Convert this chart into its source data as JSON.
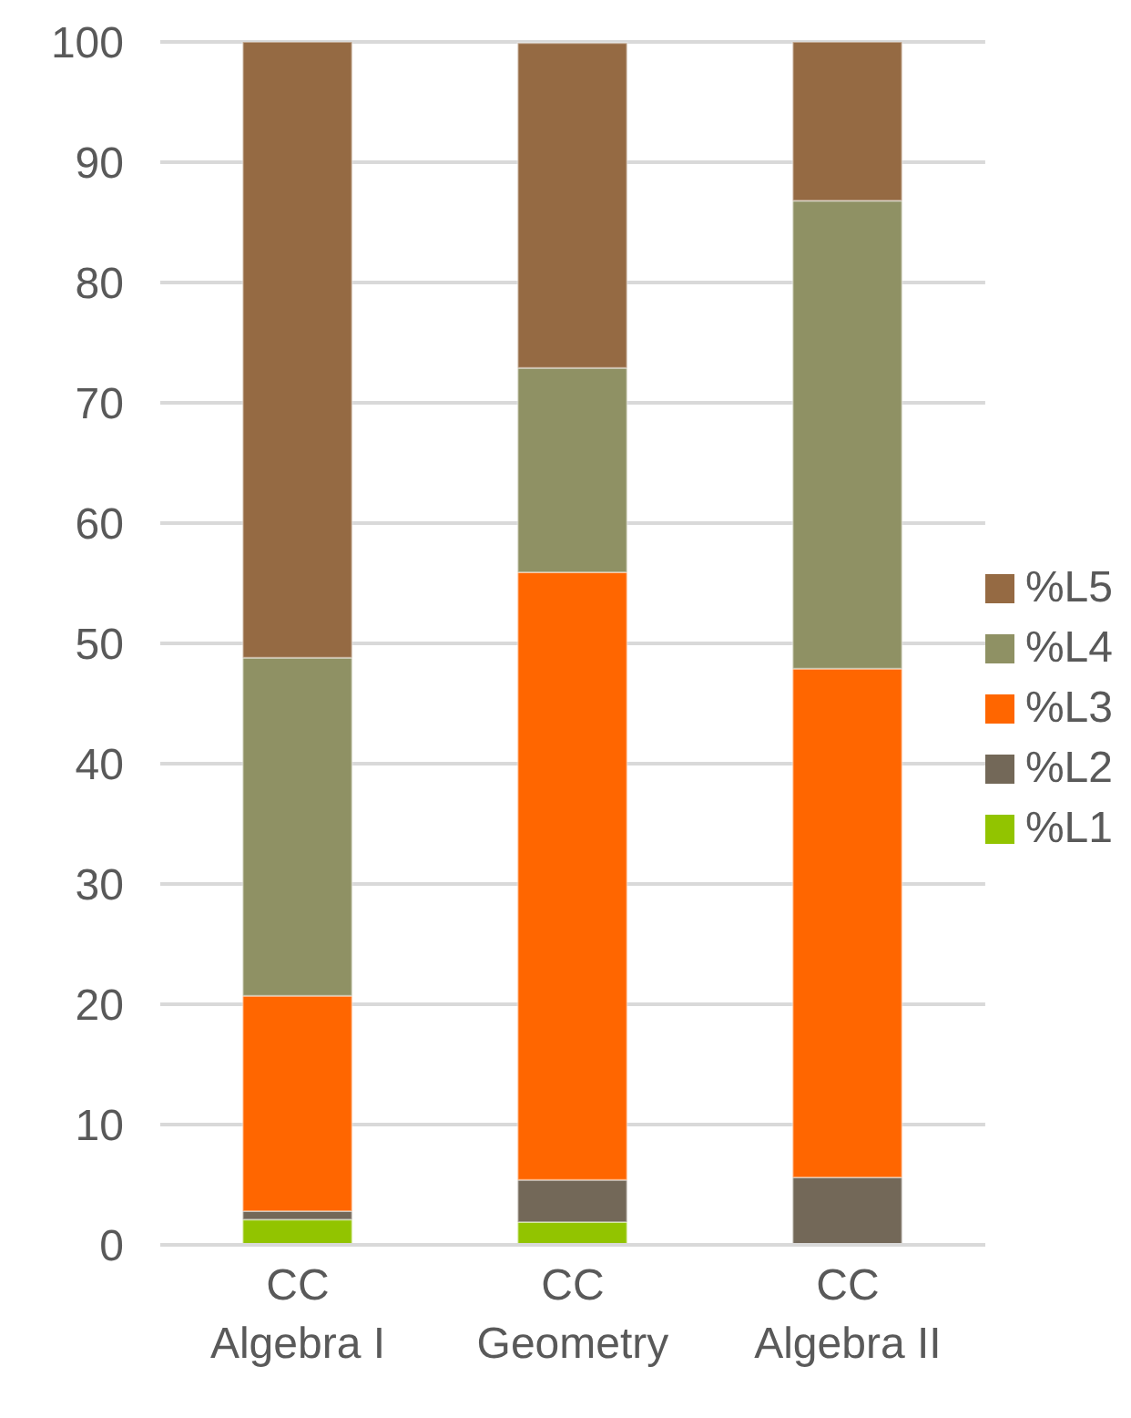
{
  "chart_data": {
    "type": "bar",
    "stacked": true,
    "categories": [
      "CC\nAlgebra I",
      "CC\nGeometry",
      "CC\nAlgebra II"
    ],
    "series": [
      {
        "name": "%L1",
        "color": "#92c400",
        "values": [
          2.1,
          1.9,
          0
        ]
      },
      {
        "name": "%L2",
        "color": "#736858",
        "values": [
          0.7,
          3.5,
          5.6
        ]
      },
      {
        "name": "%L3",
        "color": "#ff6600",
        "values": [
          17.9,
          50.5,
          42.3
        ]
      },
      {
        "name": "%L4",
        "color": "#8f9164",
        "values": [
          28.1,
          17.0,
          38.9
        ]
      },
      {
        "name": "%L5",
        "color": "#956a43",
        "values": [
          51.2,
          27.0,
          13.2
        ]
      }
    ],
    "ylim": [
      0,
      100
    ],
    "yticks": [
      0,
      10,
      20,
      30,
      40,
      50,
      60,
      70,
      80,
      90,
      100
    ],
    "grid": "y",
    "legend": "right"
  }
}
